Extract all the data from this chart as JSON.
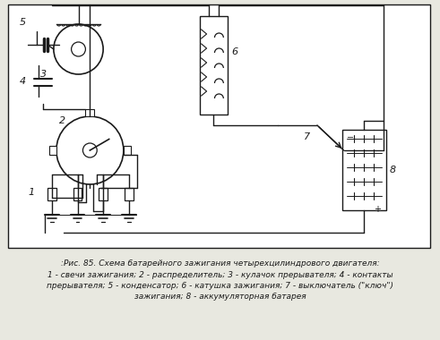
{
  "title_line1": ":Рис. 85. Схема батарейного зажигания четырехцилиндрового двигателя:",
  "title_line2": "1 - свечи зажигания; 2 - распределитель; 3 - кулачок прерывателя; 4 - контакты",
  "title_line3": "прерывателя; 5 - конденсатор; 6 - катушка зажигания; 7 - выключатель (\"ключ\")",
  "title_line4": "зажигания; 8 - аккумуляторная батарея",
  "bg_color": "#e8e8e0",
  "line_color": "#1a1a1a",
  "diagram_bg": "#ffffff"
}
